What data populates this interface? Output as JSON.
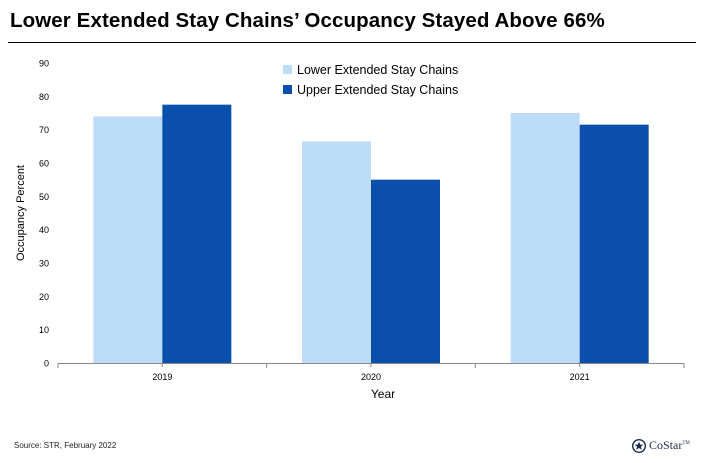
{
  "title": "Lower Extended Stay Chains’ Occupancy Stayed Above 66%",
  "source": "Source: STR, February 2022",
  "logo": {
    "text": "CoStar",
    "mark": "TM"
  },
  "colors": {
    "lower": "#bddcf8",
    "upper": "#0b4fae",
    "axis": "#888888"
  },
  "chart_data": {
    "type": "bar",
    "categories": [
      "2019",
      "2020",
      "2021"
    ],
    "series": [
      {
        "name": "Lower Extended Stay Chains",
        "values": [
          74,
          66.5,
          75
        ]
      },
      {
        "name": "Upper Extended Stay Chains",
        "values": [
          77.5,
          55,
          71.5
        ]
      }
    ],
    "title": "",
    "xlabel": "Year",
    "ylabel": "Occupancy Percent",
    "ylim": [
      0,
      90
    ],
    "yticks": [
      "0",
      "10",
      "20",
      "30",
      "40",
      "50",
      "60",
      "70",
      "80",
      "90"
    ],
    "grid": false,
    "legend": "top-center"
  }
}
